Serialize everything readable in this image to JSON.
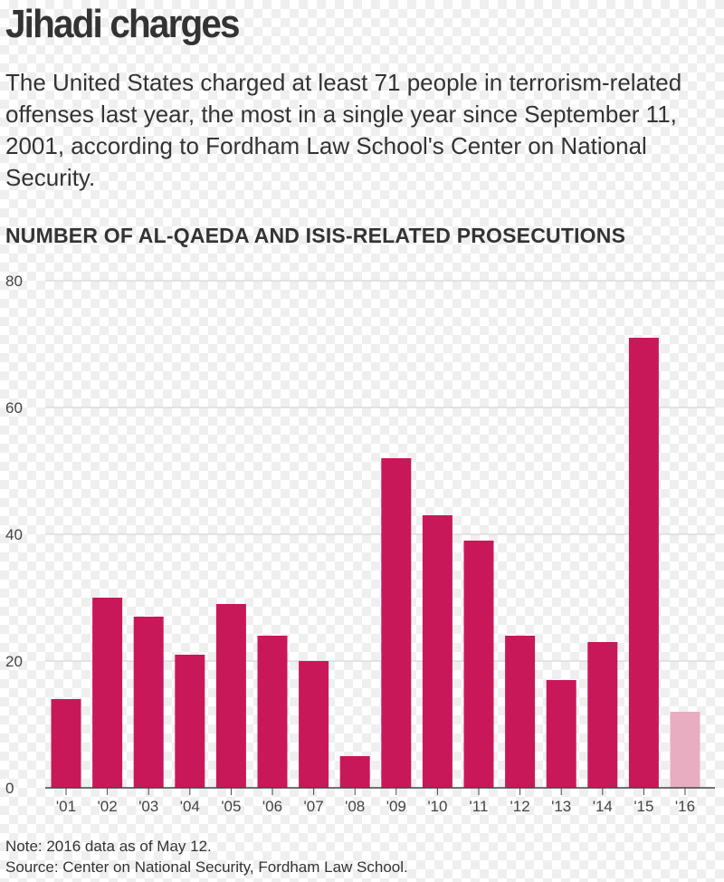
{
  "header": {
    "title": "Jihadi charges",
    "description": "The United States charged at least 71 people in terrorism-related offenses last year, the most in a single year since September 11, 2001, according to Fordham Law School's Center on National Security."
  },
  "chart_data": {
    "type": "bar",
    "title": "NUMBER OF AL-QAEDA AND ISIS-RELATED PROSECUTIONS",
    "xlabel": "",
    "ylabel": "",
    "categories": [
      "'01",
      "'02",
      "'03",
      "'04",
      "'05",
      "'06",
      "'07",
      "'08",
      "'09",
      "'10",
      "'11",
      "'12",
      "'13",
      "'14",
      "'15",
      "'16"
    ],
    "values": [
      14,
      30,
      27,
      21,
      29,
      24,
      20,
      5,
      52,
      43,
      39,
      24,
      17,
      23,
      71,
      12
    ],
    "ylim": [
      0,
      80
    ],
    "yticks": [
      "80",
      "60",
      "40",
      "20",
      "0"
    ],
    "grid": true,
    "colors": {
      "bar": "#c8185a",
      "partial_bar": "#e8adc1",
      "grid": "#cfcfcf",
      "axis": "#444444"
    },
    "partial_category": "'16"
  },
  "footer": {
    "note": "Note: 2016 data as of May 12.",
    "source": "Source: Center on National Security, Fordham Law School."
  }
}
